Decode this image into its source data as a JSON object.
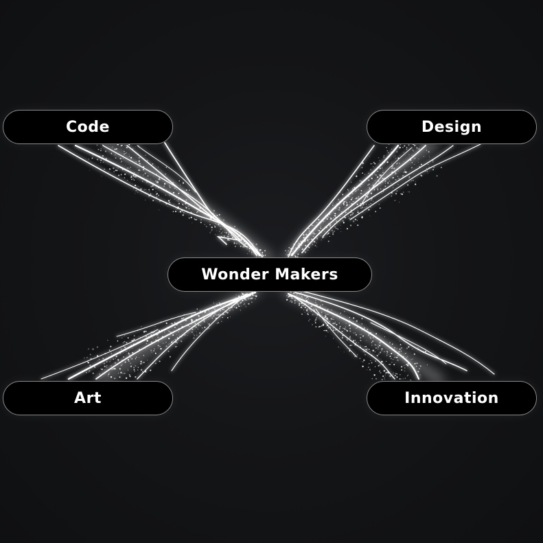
{
  "center": {
    "label": "Wonder Makers"
  },
  "nodes": {
    "code": {
      "label": "Code"
    },
    "design": {
      "label": "Design"
    },
    "art": {
      "label": "Art"
    },
    "innovation": {
      "label": "Innovation"
    }
  },
  "colors": {
    "background": "#121315",
    "pill_fill": "#000000",
    "pill_border": "#8a8a8c",
    "text": "#ffffff",
    "glow": "#ffffff"
  }
}
